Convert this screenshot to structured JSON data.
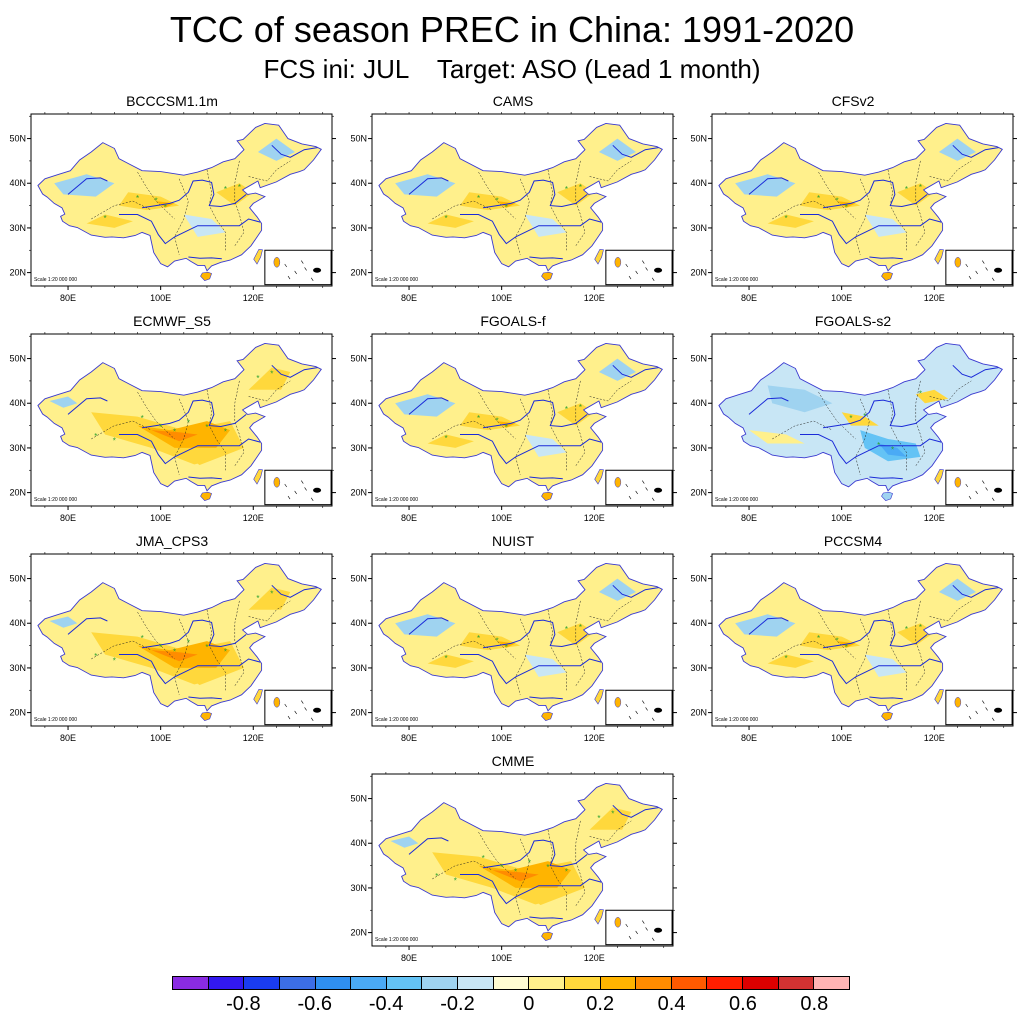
{
  "figure": {
    "title": "TCC of season PREC in China: 1991-2020",
    "subtitle": "FCS ini: JUL    Target: ASO (Lead 1 month)"
  },
  "axes": {
    "x_ticks": [
      "80E",
      "100E",
      "120E"
    ],
    "y_ticks": [
      "50N",
      "40N",
      "30N",
      "20N"
    ],
    "scale_note": "Scale 1:20 000 000"
  },
  "panels": [
    {
      "name": "BCCCSM1.1m",
      "dominant": "mixed"
    },
    {
      "name": "CAMS",
      "dominant": "mixed"
    },
    {
      "name": "CFSv2",
      "dominant": "mixed"
    },
    {
      "name": "ECMWF_S5",
      "dominant": "positive"
    },
    {
      "name": "FGOALS-f",
      "dominant": "mixed"
    },
    {
      "name": "FGOALS-s2",
      "dominant": "negative"
    },
    {
      "name": "JMA_CPS3",
      "dominant": "positive"
    },
    {
      "name": "NUIST",
      "dominant": "mixed"
    },
    {
      "name": "PCCSM4",
      "dominant": "mixed"
    },
    {
      "name": "CMME",
      "dominant": "positive"
    }
  ],
  "colorbar": {
    "colors": [
      "#8a2be2",
      "#3218f0",
      "#1a3cf0",
      "#3c6ee6",
      "#2f8ff0",
      "#4aaaf5",
      "#64c3f5",
      "#9fd3f0",
      "#c8e6f5",
      "#fffcd2",
      "#fff08c",
      "#ffd83c",
      "#ffb400",
      "#ff8c00",
      "#ff5a00",
      "#ff1e00",
      "#dc0000",
      "#d23232",
      "#ffb4b4"
    ],
    "labels": [
      "-0.8",
      "-0.6",
      "-0.4",
      "-0.2",
      "0",
      "0.2",
      "0.4",
      "0.6",
      "0.8"
    ]
  }
}
